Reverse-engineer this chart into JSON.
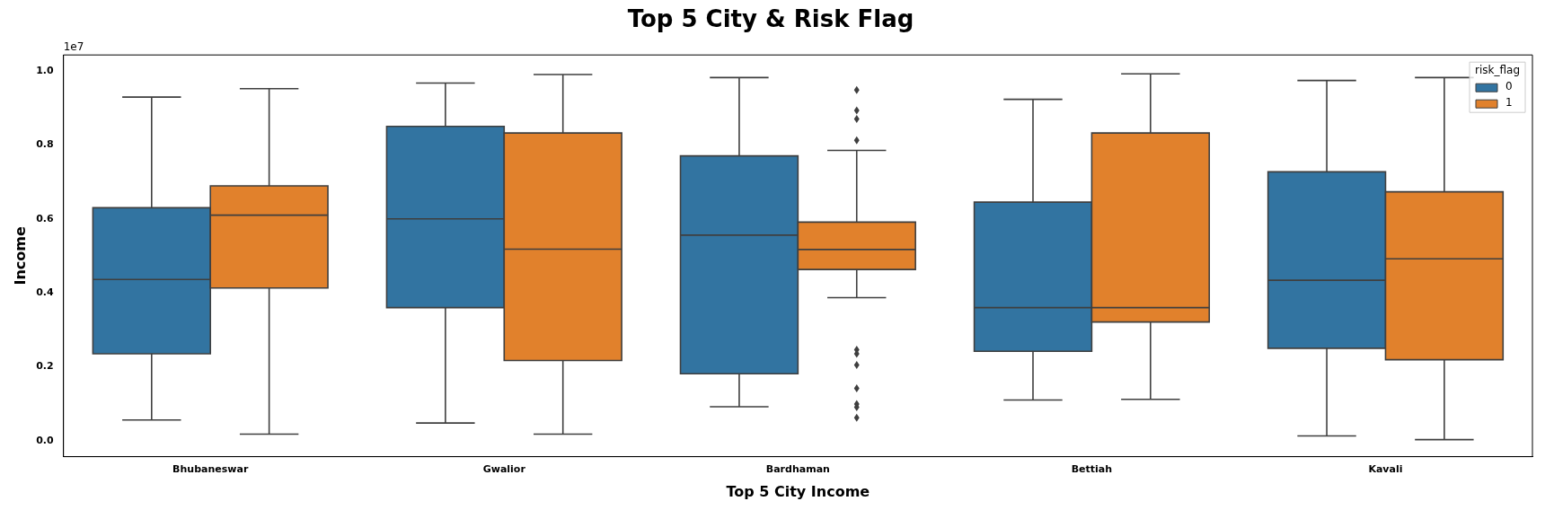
{
  "chart_data": {
    "type": "box",
    "title": "Top 5 City & Risk Flag",
    "xlabel": "Top 5 City Income",
    "ylabel": "Income",
    "legend_title": "risk_flag",
    "legend": "top right",
    "grid": false,
    "marker": "diamond",
    "annotations": [
      "1e7"
    ],
    "categories": [
      "Bhubaneswar",
      "Gwalior",
      "Bardhaman",
      "Bettiah",
      "Kavali"
    ],
    "ylim": [
      -0.043,
      1.043
    ],
    "yticks": [
      {
        "value": 0,
        "label": "0.0"
      },
      {
        "value": 0.2,
        "label": "0.2"
      },
      {
        "value": 0.4,
        "label": "0.4"
      },
      {
        "value": 0.6,
        "label": "0.6"
      },
      {
        "value": 0.8,
        "label": "0.8"
      },
      {
        "value": 1,
        "label": "1.0"
      }
    ],
    "series": [
      {
        "name": "0",
        "color": "#3274a1",
        "boxes": [
          {
            "low": 0.056,
            "q1": 0.235,
            "median": 0.436,
            "q3": 0.63,
            "high": 0.929
          },
          {
            "low": 0.048,
            "q1": 0.36,
            "median": 0.6,
            "q3": 0.85,
            "high": 0.967
          },
          {
            "low": 0.092,
            "q1": 0.181,
            "median": 0.556,
            "q3": 0.77,
            "high": 0.982
          },
          {
            "low": 0.11,
            "q1": 0.242,
            "median": 0.36,
            "q3": 0.645,
            "high": 0.923
          },
          {
            "low": 0.013,
            "q1": 0.25,
            "median": 0.434,
            "q3": 0.727,
            "high": 0.974
          }
        ]
      },
      {
        "name": "1",
        "color": "#e1812c",
        "boxes": [
          {
            "low": 0.018,
            "q1": 0.413,
            "median": 0.61,
            "q3": 0.689,
            "high": 0.952
          },
          {
            "low": 0.018,
            "q1": 0.217,
            "median": 0.518,
            "q3": 0.832,
            "high": 0.99
          },
          {
            "low": 0.387,
            "q1": 0.463,
            "median": 0.517,
            "q3": 0.591,
            "high": 0.785,
            "outliers": [
              0.948,
              0.893,
              0.87,
              0.812,
              0.246,
              0.235,
              0.205,
              0.142,
              0.099,
              0.091,
              0.062
            ]
          },
          {
            "low": 0.112,
            "q1": 0.321,
            "median": 0.36,
            "q3": 0.832,
            "high": 0.992
          },
          {
            "low": 0.003,
            "q1": 0.219,
            "median": 0.492,
            "q3": 0.673,
            "high": 0.982
          }
        ]
      }
    ]
  }
}
